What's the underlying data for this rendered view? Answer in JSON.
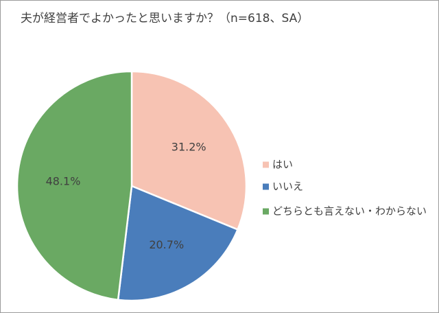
{
  "chart_data": {
    "type": "pie",
    "title": "夫が経営者でよかったと思いますか？（n=618、SA）",
    "categories": [
      "はい",
      "いいえ",
      "どちらとも言えない・わからない"
    ],
    "values": [
      31.2,
      20.7,
      48.1
    ],
    "value_labels": [
      "31.2%",
      "20.7%",
      "48.1%"
    ],
    "colors": [
      "#f7c3b3",
      "#4a7dbb",
      "#6aa963"
    ],
    "legend": "right"
  }
}
